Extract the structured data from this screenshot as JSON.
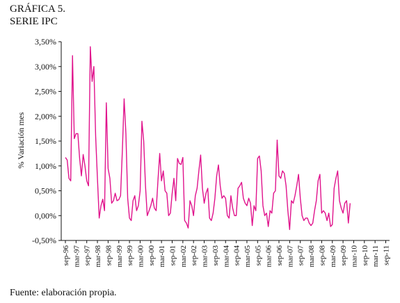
{
  "figure_label": "GRÁFICA 5.",
  "title": "SERIE IPC",
  "source_note": "Fuente: elaboración propia.",
  "chart_data": {
    "type": "line",
    "title": "SERIE IPC",
    "xlabel": "",
    "ylabel": "% Variación mes",
    "ylim": [
      -0.5,
      3.5
    ],
    "grid": false,
    "line_color": "#e0138c",
    "y_ticks": [
      -0.5,
      0,
      0.5,
      1.0,
      1.5,
      2.0,
      2.5,
      3.0,
      3.5
    ],
    "y_tick_labels": [
      "-0,50%",
      "0,00%",
      "0,50%",
      "1,00%",
      "1,50%",
      "2,00%",
      "2,50%",
      "3,00%",
      "3,50%"
    ],
    "x_tick_labels": [
      "sep-96",
      "mar-97",
      "sep-97",
      "mar-98",
      "sep-98",
      "mar-99",
      "sep-99",
      "mar-00",
      "sep-00",
      "mar-01",
      "sep-01",
      "mar-02",
      "sep-02",
      "mar-03",
      "sep-03",
      "mar-04",
      "sep-04",
      "mar-05",
      "sep-05",
      "mar-06",
      "sep-06",
      "mar-07",
      "sep-07",
      "mar-08",
      "sep-08",
      "mar-09",
      "sep-09",
      "mar-10",
      "sep-10",
      "mar-11",
      "sep-11"
    ],
    "series": [
      {
        "start": "sep-96",
        "values": [
          1.17,
          1.12,
          0.75,
          0.7,
          3.22,
          1.55,
          1.65,
          1.65,
          1.15,
          0.8,
          1.23,
          1.0,
          0.7,
          0.6,
          3.4,
          2.7,
          3.0,
          1.6,
          0.75,
          -0.05,
          0.2,
          0.33,
          0.1,
          2.27,
          0.95,
          0.75,
          0.25,
          0.3,
          0.45,
          0.3,
          0.32,
          0.4,
          1.3,
          2.35,
          1.65,
          0.35,
          -0.05,
          -0.1,
          0.3,
          0.4,
          0.1,
          0.2,
          0.5,
          1.9,
          1.5,
          0.6,
          0.0,
          0.1,
          0.2,
          0.35,
          0.15,
          0.1,
          0.7,
          1.25,
          0.7,
          0.9,
          0.5,
          0.45,
          0.0,
          0.05,
          0.45,
          0.75,
          0.3,
          1.15,
          1.05,
          1.03,
          1.17,
          -0.1,
          -0.15,
          -0.25,
          0.3,
          0.2,
          0.0,
          0.4,
          0.55,
          0.9,
          1.22,
          0.55,
          0.25,
          0.45,
          0.55,
          -0.05,
          -0.1,
          0.05,
          0.35,
          0.8,
          1.02,
          0.6,
          0.35,
          0.4,
          0.35,
          0.0,
          -0.05,
          0.4,
          0.15,
          0.0,
          0.0,
          0.55,
          0.6,
          0.67,
          0.35,
          0.25,
          0.2,
          0.35,
          0.25,
          -0.2,
          0.2,
          0.1,
          1.15,
          1.2,
          0.9,
          0.2,
          0.0,
          0.05,
          -0.22,
          0.1,
          0.05,
          0.45,
          0.5,
          1.52,
          0.8,
          0.75,
          0.9,
          0.85,
          0.6,
          0.1,
          -0.28,
          0.3,
          0.25,
          0.4,
          0.6,
          0.83,
          0.35,
          0.0,
          -0.1,
          -0.05,
          -0.05,
          -0.15,
          -0.2,
          -0.15,
          0.1,
          0.3,
          0.7,
          0.83,
          0.05,
          0.1,
          0.05,
          -0.1,
          0.05,
          -0.22,
          -0.18,
          0.55,
          0.75,
          0.9,
          0.3,
          0.15,
          0.05,
          0.25,
          0.3,
          -0.15,
          0.25
        ]
      }
    ]
  }
}
